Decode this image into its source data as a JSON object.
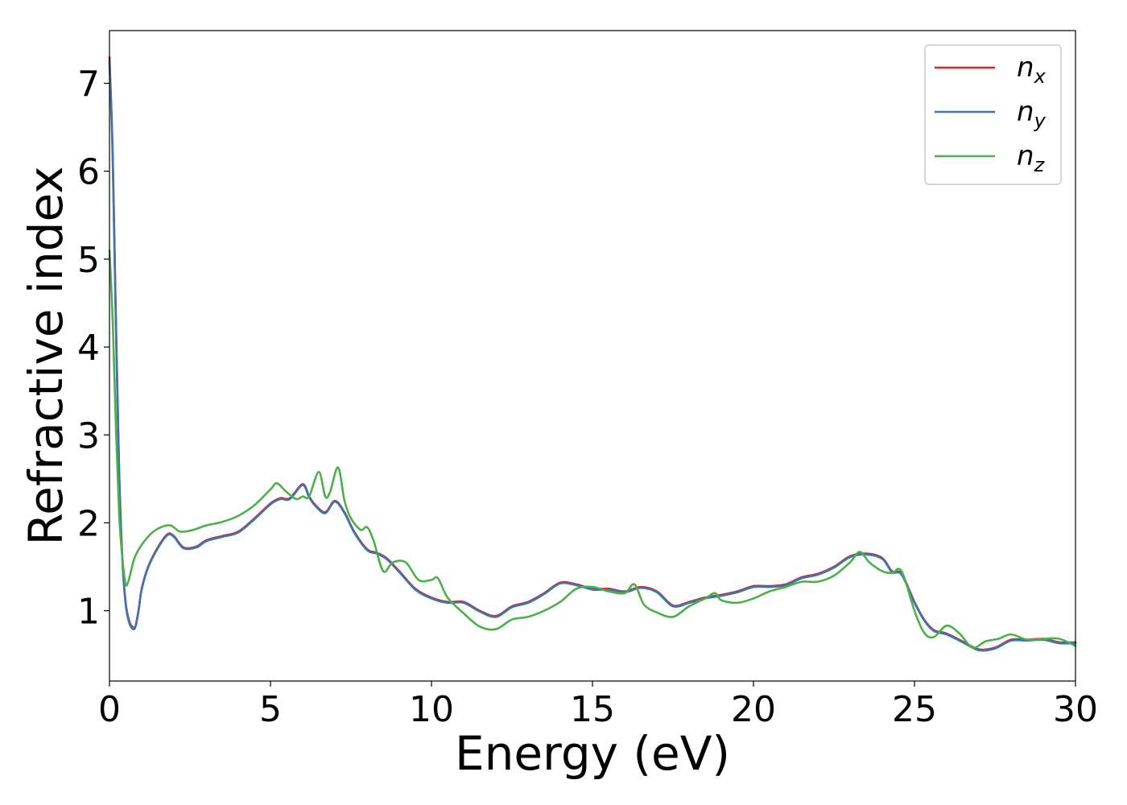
{
  "chart_data": {
    "type": "line",
    "xlabel": "Energy (eV)",
    "ylabel": "Refractive index",
    "xlim": [
      0,
      30
    ],
    "ylim": [
      0.2,
      7.6
    ],
    "xticks": [
      0,
      5,
      10,
      15,
      20,
      25,
      30
    ],
    "yticks": [
      1,
      2,
      3,
      4,
      5,
      6,
      7
    ],
    "grid": false,
    "legend_position": "top-right",
    "series": [
      {
        "name": "n_x",
        "label_base": "n",
        "label_sub": "x",
        "color": "#d62728",
        "x": [
          0,
          0.1,
          0.2,
          0.3,
          0.4,
          0.5,
          0.6,
          0.7,
          0.8,
          0.9,
          1.0,
          1.2,
          1.5,
          1.8,
          2.0,
          2.3,
          2.7,
          3.0,
          3.5,
          4.0,
          4.5,
          5.0,
          5.3,
          5.6,
          6.0,
          6.2,
          6.4,
          6.7,
          7.0,
          7.3,
          7.6,
          8.0,
          8.3,
          8.6,
          9.0,
          9.5,
          10.0,
          10.5,
          11.0,
          11.5,
          12.0,
          12.5,
          13.0,
          13.5,
          14.0,
          14.5,
          15.0,
          15.5,
          16.0,
          16.5,
          17.0,
          17.5,
          18.0,
          18.5,
          19.0,
          19.5,
          20.0,
          20.5,
          21.0,
          21.5,
          22.0,
          22.5,
          23.0,
          23.5,
          24.0,
          24.3,
          24.6,
          25.0,
          25.3,
          25.6,
          26.0,
          26.5,
          27.0,
          27.5,
          28.0,
          28.5,
          29.0,
          29.5,
          30.0
        ],
        "y": [
          7.3,
          6.2,
          4.3,
          2.6,
          1.6,
          1.1,
          0.9,
          0.82,
          0.82,
          1.0,
          1.25,
          1.5,
          1.72,
          1.87,
          1.85,
          1.72,
          1.73,
          1.8,
          1.85,
          1.9,
          2.05,
          2.22,
          2.28,
          2.28,
          2.44,
          2.3,
          2.2,
          2.12,
          2.25,
          2.12,
          1.9,
          1.7,
          1.66,
          1.6,
          1.45,
          1.25,
          1.15,
          1.1,
          1.1,
          1.0,
          0.94,
          1.05,
          1.1,
          1.2,
          1.32,
          1.3,
          1.25,
          1.25,
          1.22,
          1.27,
          1.22,
          1.06,
          1.1,
          1.15,
          1.18,
          1.22,
          1.28,
          1.28,
          1.3,
          1.38,
          1.42,
          1.5,
          1.62,
          1.65,
          1.6,
          1.45,
          1.42,
          1.1,
          0.9,
          0.78,
          0.74,
          0.65,
          0.56,
          0.58,
          0.67,
          0.67,
          0.68,
          0.64,
          0.64
        ]
      },
      {
        "name": "n_y",
        "label_base": "n",
        "label_sub": "y",
        "color": "#3a76b0",
        "x": [
          0,
          0.1,
          0.2,
          0.3,
          0.4,
          0.5,
          0.6,
          0.7,
          0.8,
          0.9,
          1.0,
          1.2,
          1.5,
          1.8,
          2.0,
          2.3,
          2.7,
          3.0,
          3.5,
          4.0,
          4.5,
          5.0,
          5.3,
          5.6,
          6.0,
          6.2,
          6.4,
          6.7,
          7.0,
          7.3,
          7.6,
          8.0,
          8.3,
          8.6,
          9.0,
          9.5,
          10.0,
          10.5,
          11.0,
          11.5,
          12.0,
          12.5,
          13.0,
          13.5,
          14.0,
          14.5,
          15.0,
          15.5,
          16.0,
          16.5,
          17.0,
          17.5,
          18.0,
          18.5,
          19.0,
          19.5,
          20.0,
          20.5,
          21.0,
          21.5,
          22.0,
          22.5,
          23.0,
          23.5,
          24.0,
          24.3,
          24.6,
          25.0,
          25.3,
          25.6,
          26.0,
          26.5,
          27.0,
          27.5,
          28.0,
          28.5,
          29.0,
          29.5,
          30.0
        ],
        "y": [
          7.25,
          6.15,
          4.25,
          2.55,
          1.58,
          1.08,
          0.88,
          0.8,
          0.81,
          0.99,
          1.24,
          1.49,
          1.71,
          1.86,
          1.84,
          1.71,
          1.72,
          1.79,
          1.84,
          1.89,
          2.04,
          2.21,
          2.27,
          2.27,
          2.43,
          2.29,
          2.19,
          2.11,
          2.24,
          2.11,
          1.89,
          1.69,
          1.65,
          1.59,
          1.44,
          1.24,
          1.14,
          1.09,
          1.09,
          0.99,
          0.93,
          1.04,
          1.09,
          1.19,
          1.31,
          1.29,
          1.24,
          1.24,
          1.21,
          1.26,
          1.21,
          1.05,
          1.09,
          1.14,
          1.17,
          1.21,
          1.27,
          1.27,
          1.29,
          1.37,
          1.41,
          1.49,
          1.61,
          1.64,
          1.59,
          1.44,
          1.41,
          1.09,
          0.89,
          0.77,
          0.73,
          0.64,
          0.55,
          0.57,
          0.66,
          0.66,
          0.67,
          0.63,
          0.63
        ]
      },
      {
        "name": "n_z",
        "label_base": "n",
        "label_sub": "z",
        "color": "#4daf4a",
        "x": [
          0,
          0.1,
          0.2,
          0.3,
          0.4,
          0.5,
          0.6,
          0.7,
          0.8,
          1.0,
          1.3,
          1.6,
          1.9,
          2.2,
          2.6,
          3.0,
          3.5,
          4.0,
          4.5,
          5.0,
          5.2,
          5.5,
          5.8,
          6.0,
          6.2,
          6.5,
          6.7,
          6.85,
          7.1,
          7.3,
          7.5,
          7.8,
          8.0,
          8.2,
          8.5,
          8.8,
          9.2,
          9.6,
          10.0,
          10.2,
          10.5,
          11.0,
          11.5,
          12.0,
          12.5,
          13.0,
          13.5,
          14.0,
          14.5,
          15.0,
          15.5,
          16.0,
          16.3,
          16.6,
          17.0,
          17.5,
          18.0,
          18.5,
          18.8,
          19.0,
          19.5,
          20.0,
          20.5,
          21.0,
          21.5,
          22.0,
          22.5,
          23.0,
          23.3,
          23.6,
          24.0,
          24.3,
          24.6,
          25.0,
          25.3,
          25.6,
          26.0,
          26.4,
          26.8,
          27.2,
          27.6,
          28.0,
          28.5,
          29.0,
          29.5,
          30.0
        ],
        "y": [
          5.1,
          4.3,
          3.1,
          2.1,
          1.6,
          1.3,
          1.35,
          1.5,
          1.62,
          1.75,
          1.88,
          1.95,
          1.97,
          1.9,
          1.92,
          1.97,
          2.01,
          2.08,
          2.2,
          2.38,
          2.45,
          2.35,
          2.27,
          2.3,
          2.3,
          2.58,
          2.3,
          2.35,
          2.63,
          2.25,
          2.05,
          1.92,
          1.95,
          1.8,
          1.45,
          1.55,
          1.55,
          1.35,
          1.35,
          1.37,
          1.15,
          0.97,
          0.82,
          0.79,
          0.9,
          0.93,
          1.0,
          1.1,
          1.25,
          1.27,
          1.22,
          1.2,
          1.3,
          1.07,
          0.98,
          0.93,
          1.05,
          1.14,
          1.2,
          1.12,
          1.09,
          1.14,
          1.22,
          1.27,
          1.33,
          1.33,
          1.4,
          1.55,
          1.67,
          1.55,
          1.45,
          1.43,
          1.45,
          1.0,
          0.75,
          0.7,
          0.83,
          0.74,
          0.58,
          0.65,
          0.68,
          0.73,
          0.67,
          0.68,
          0.68,
          0.6
        ]
      }
    ]
  }
}
